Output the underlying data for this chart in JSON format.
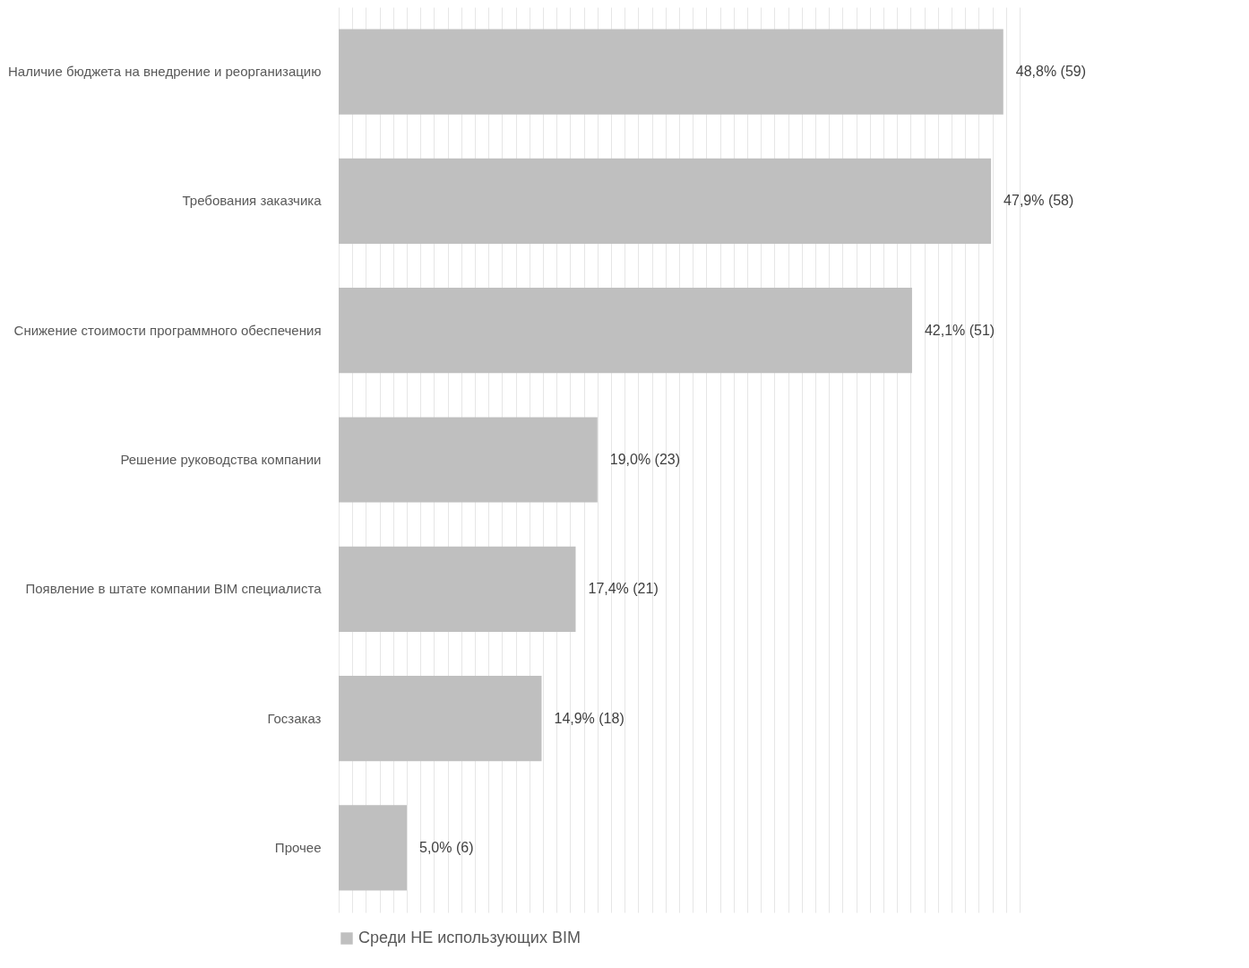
{
  "chart_data": {
    "type": "bar",
    "orientation": "horizontal",
    "categories": [
      "Наличие бюджета на внедрение и реорганизацию",
      "Требования заказчика",
      "Снижение стоимости программного обеспечения",
      "Решение руководства компании",
      "Появление в штате компании BIM специалиста",
      "Госзаказ",
      "Прочее"
    ],
    "series": [
      {
        "name": "Среди НЕ использующих BIM",
        "color": "#bfbfbf",
        "values": [
          48.8,
          47.9,
          42.1,
          19.0,
          17.4,
          14.9,
          5.0
        ],
        "value_labels": [
          "48,8% (59)",
          "47,9% (58)",
          "42,1% (51)",
          "19,0% (23)",
          "17,4% (21)",
          "14,9% (18)",
          "5,0% (6)"
        ]
      }
    ],
    "grid": true,
    "tick_labels": "y",
    "legend": "bottom"
  }
}
